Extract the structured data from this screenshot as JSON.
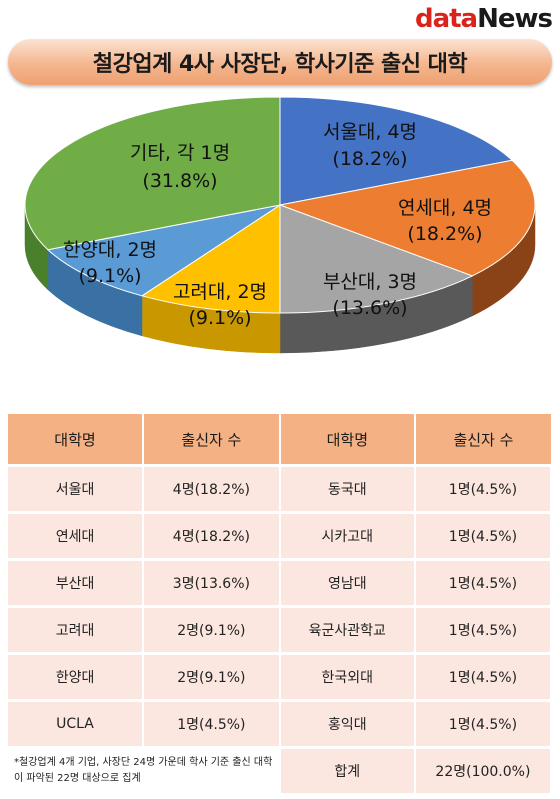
{
  "logo": {
    "part1": "data",
    "part2": "News"
  },
  "title": "철강업계 4사 사장단, 학사기준 출신 대학",
  "chart_data": {
    "type": "pie",
    "title": "철강업계 4사 사장단, 학사기준 출신 대학",
    "slices": [
      {
        "name": "서울대",
        "label": "서울대, 4명",
        "pct_label": "(18.2%)",
        "value": 18.2,
        "color": "#4472c4",
        "side": "#2e5393"
      },
      {
        "name": "연세대",
        "label": "연세대, 4명",
        "pct_label": "(18.2%)",
        "value": 18.2,
        "color": "#ed7d31",
        "side": "#8a4217"
      },
      {
        "name": "부산대",
        "label": "부산대, 3명",
        "pct_label": "(13.6%)",
        "value": 13.6,
        "color": "#a5a5a5",
        "side": "#595959"
      },
      {
        "name": "고려대",
        "label": "고려대, 2명",
        "pct_label": "(9.1%)",
        "value": 9.1,
        "color": "#ffc000",
        "side": "#c99800"
      },
      {
        "name": "한양대",
        "label": "한양대, 2명",
        "pct_label": "(9.1%)",
        "value": 9.1,
        "color": "#5b9bd5",
        "side": "#3a71a5"
      },
      {
        "name": "기타",
        "label": "기타, 각 1명",
        "pct_label": "(31.8%)",
        "value": 31.8,
        "color": "#70ad47",
        "side": "#4a7f2b"
      }
    ]
  },
  "table": {
    "headers": [
      "대학명",
      "출신자 수",
      "대학명",
      "출신자 수"
    ],
    "rows": [
      [
        "서울대",
        "4명(18.2%)",
        "동국대",
        "1명(4.5%)"
      ],
      [
        "연세대",
        "4명(18.2%)",
        "시카고대",
        "1명(4.5%)"
      ],
      [
        "부산대",
        "3명(13.6%)",
        "영남대",
        "1명(4.5%)"
      ],
      [
        "고려대",
        "2명(9.1%)",
        "육군사관학교",
        "1명(4.5%)"
      ],
      [
        "한양대",
        "2명(9.1%)",
        "한국외대",
        "1명(4.5%)"
      ],
      [
        "UCLA",
        "1명(4.5%)",
        "홍익대",
        "1명(4.5%)"
      ]
    ],
    "footnote": "*철강업계 4개 기업, 사장단 24명 가운데 학사 기준 출신 대학이 파악된 22명 대상으로 집계",
    "total_label": "합계",
    "total_value": "22명(100.0%)"
  }
}
